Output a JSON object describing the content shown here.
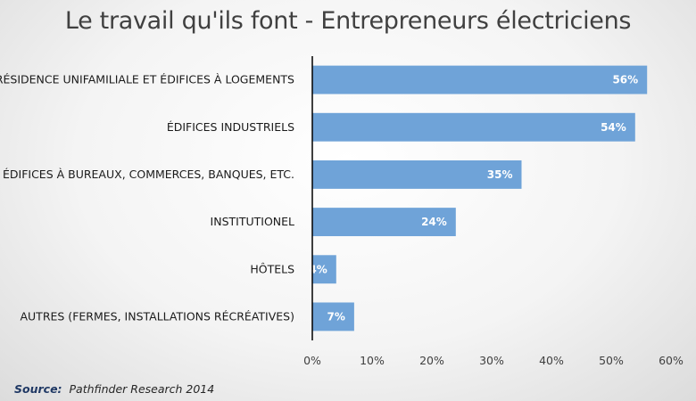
{
  "chart_data": {
    "type": "bar",
    "orientation": "horizontal",
    "title": "Le travail qu'ils font - Entrepreneurs électriciens",
    "categories": [
      "RÉSIDENCE UNIFAMILIALE ET ÉDIFICES À LOGEMENTS",
      "ÉDIFICES INDUSTRIELS",
      "ÉDIFICES À BUREAUX, COMMERCES,  BANQUES, ETC.",
      "INSTITUTIONEL",
      "HÔTELS",
      "AUTRES (FERMES, INSTALLATIONS RÉCRÉATIVES)"
    ],
    "values": [
      56,
      54,
      35,
      24,
      4,
      7
    ],
    "data_labels": [
      "56%",
      "54%",
      "35%",
      "24%",
      "4%",
      "7%"
    ],
    "xlim": [
      0,
      60
    ],
    "x_ticks": [
      "0%",
      "10%",
      "20%",
      "30%",
      "40%",
      "50%",
      "60%"
    ],
    "grid": false,
    "bar_color": "#6fa3d8",
    "xlabel": "",
    "ylabel": ""
  },
  "source": {
    "label": "Source:",
    "text": "Pathfinder Research 2014"
  }
}
